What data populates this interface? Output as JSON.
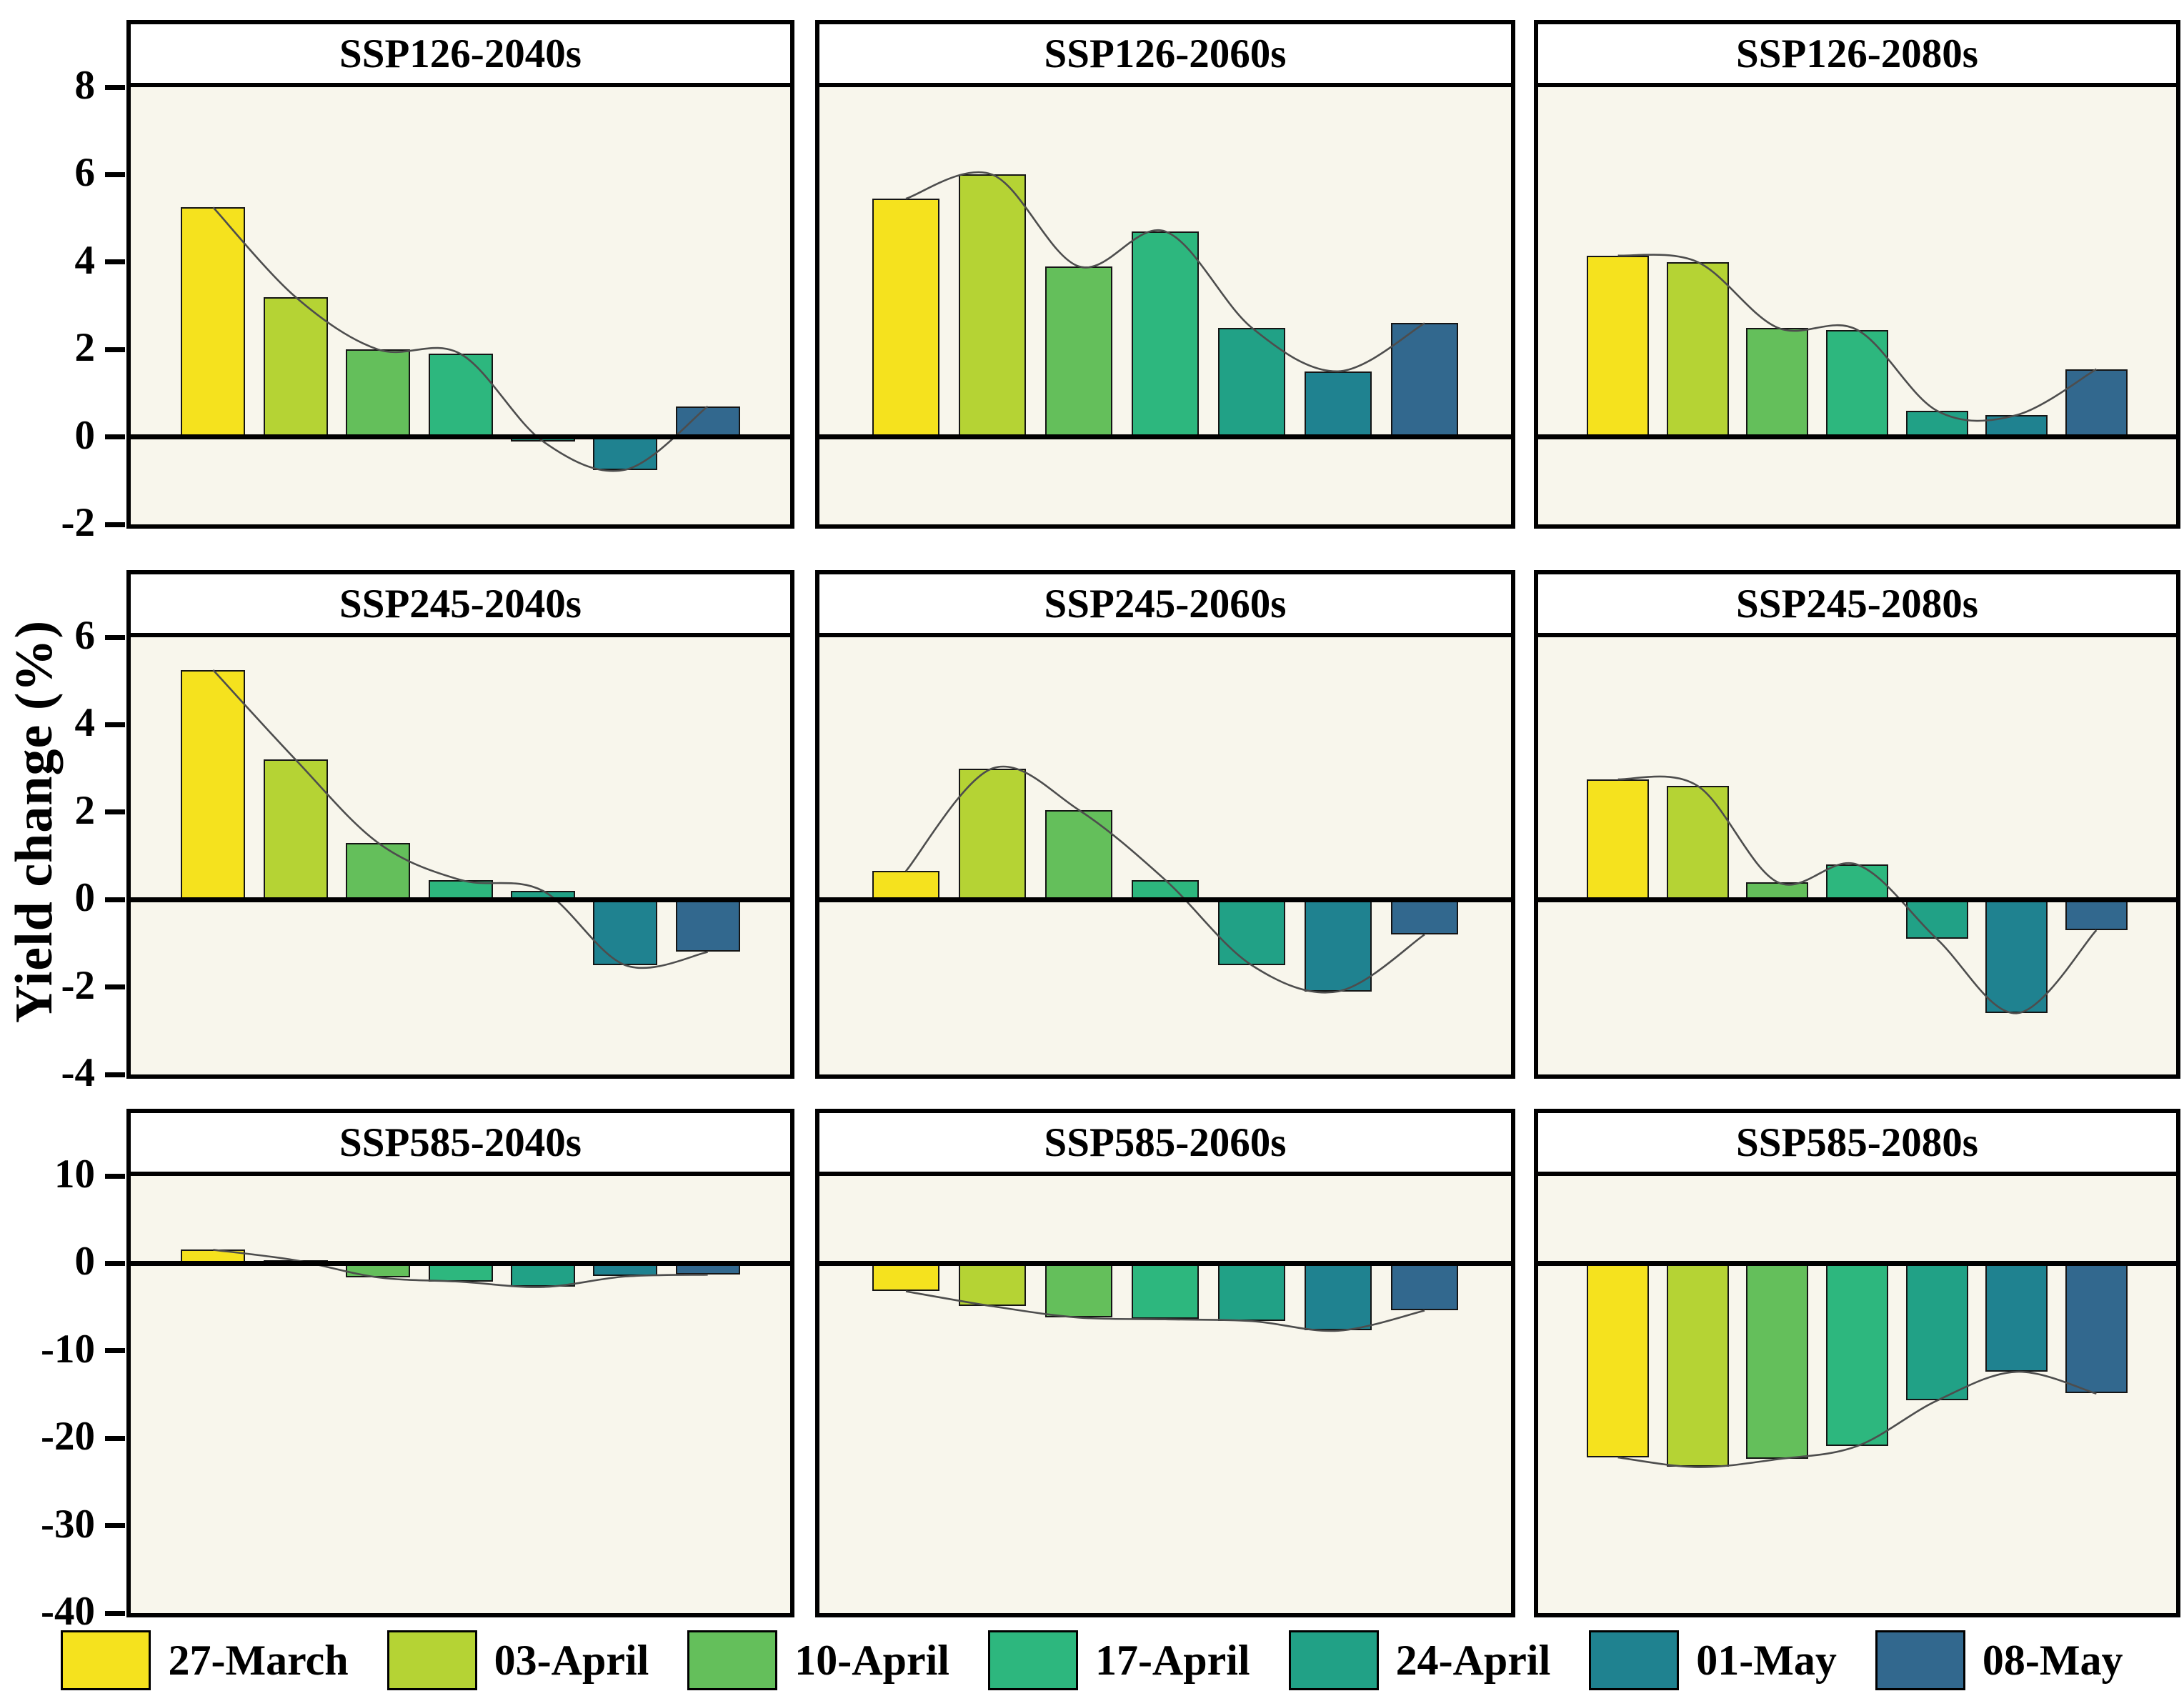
{
  "figure": {
    "ylabel": "Yield change (%)"
  },
  "legend": {
    "items": [
      {
        "label": "27-March",
        "color": "#F5E21E"
      },
      {
        "label": "03-April",
        "color": "#B5D334"
      },
      {
        "label": "10-April",
        "color": "#64BF5B"
      },
      {
        "label": "17-April",
        "color": "#2DB77E"
      },
      {
        "label": "24-April",
        "color": "#21A186"
      },
      {
        "label": "01-May",
        "color": "#1F8290"
      },
      {
        "label": "08-May",
        "color": "#32688E"
      }
    ]
  },
  "style": {
    "plot_background": "#F8F6EC",
    "frame_color": "#000000",
    "curve_color": "#4D4D4D",
    "bar_edge_color": "#151515"
  },
  "chart_data": [
    {
      "type": "bar",
      "title": "SSP126-2040s",
      "categories": [
        "27-March",
        "03-April",
        "10-April",
        "17-April",
        "24-April",
        "01-May",
        "08-May"
      ],
      "values": [
        5.25,
        3.2,
        2.0,
        1.9,
        -0.1,
        -0.75,
        0.7
      ],
      "ylim": [
        -2,
        8
      ],
      "yticks": [
        8,
        6,
        4,
        2,
        0,
        -2
      ],
      "ytick_labels_visible": true,
      "grid": false,
      "overlay": "smooth-spline-through-bar-tops"
    },
    {
      "type": "bar",
      "title": "SSP126-2060s",
      "categories": [
        "27-March",
        "03-April",
        "10-April",
        "17-April",
        "24-April",
        "01-May",
        "08-May"
      ],
      "values": [
        5.45,
        6.0,
        3.9,
        4.7,
        2.5,
        1.5,
        2.6
      ],
      "ylim": [
        -2,
        8
      ],
      "yticks": [
        8,
        6,
        4,
        2,
        0,
        -2
      ],
      "ytick_labels_visible": false,
      "grid": false,
      "overlay": "smooth-spline-through-bar-tops"
    },
    {
      "type": "bar",
      "title": "SSP126-2080s",
      "categories": [
        "27-March",
        "03-April",
        "10-April",
        "17-April",
        "24-April",
        "01-May",
        "08-May"
      ],
      "values": [
        4.15,
        4.0,
        2.5,
        2.45,
        0.6,
        0.5,
        1.55
      ],
      "ylim": [
        -2,
        8
      ],
      "yticks": [
        8,
        6,
        4,
        2,
        0,
        -2
      ],
      "ytick_labels_visible": false,
      "grid": false,
      "overlay": "smooth-spline-through-bar-tops"
    },
    {
      "type": "bar",
      "title": "SSP245-2040s",
      "categories": [
        "27-March",
        "03-April",
        "10-April",
        "17-April",
        "24-April",
        "01-May",
        "08-May"
      ],
      "values": [
        5.25,
        3.2,
        1.3,
        0.45,
        0.2,
        -1.5,
        -1.2
      ],
      "ylim": [
        -4,
        6
      ],
      "yticks": [
        6,
        4,
        2,
        0,
        -2,
        -4
      ],
      "ytick_labels_visible": true,
      "grid": false,
      "overlay": "smooth-spline-through-bar-tops"
    },
    {
      "type": "bar",
      "title": "SSP245-2060s",
      "categories": [
        "27-March",
        "03-April",
        "10-April",
        "17-April",
        "24-April",
        "01-May",
        "08-May"
      ],
      "values": [
        0.65,
        3.0,
        2.05,
        0.45,
        -1.5,
        -2.1,
        -0.8
      ],
      "ylim": [
        -4,
        6
      ],
      "yticks": [
        6,
        4,
        2,
        0,
        -2,
        -4
      ],
      "ytick_labels_visible": false,
      "grid": false,
      "overlay": "smooth-spline-through-bar-tops"
    },
    {
      "type": "bar",
      "title": "SSP245-2080s",
      "categories": [
        "27-March",
        "03-April",
        "10-April",
        "17-April",
        "24-April",
        "01-May",
        "08-May"
      ],
      "values": [
        2.75,
        2.6,
        0.4,
        0.8,
        -0.9,
        -2.6,
        -0.7
      ],
      "ylim": [
        -4,
        6
      ],
      "yticks": [
        6,
        4,
        2,
        0,
        -2,
        -4
      ],
      "ytick_labels_visible": false,
      "grid": false,
      "overlay": "smooth-spline-through-bar-tops"
    },
    {
      "type": "bar",
      "title": "SSP585-2040s",
      "categories": [
        "27-March",
        "03-April",
        "10-April",
        "17-April",
        "24-April",
        "01-May",
        "08-May"
      ],
      "values": [
        1.55,
        0.35,
        -1.6,
        -2.1,
        -2.7,
        -1.5,
        -1.3
      ],
      "ylim": [
        -40,
        10
      ],
      "yticks": [
        10,
        0,
        -10,
        -20,
        -30,
        -40
      ],
      "ytick_labels_visible": true,
      "grid": false,
      "overlay": "smooth-spline-through-bar-tops"
    },
    {
      "type": "bar",
      "title": "SSP585-2060s",
      "categories": [
        "27-March",
        "03-April",
        "10-April",
        "17-April",
        "24-April",
        "01-May",
        "08-May"
      ],
      "values": [
        -3.2,
        -4.9,
        -6.2,
        -6.4,
        -6.6,
        -7.7,
        -5.4
      ],
      "ylim": [
        -40,
        10
      ],
      "yticks": [
        10,
        0,
        -10,
        -20,
        -30,
        -40
      ],
      "ytick_labels_visible": false,
      "grid": false,
      "overlay": "smooth-spline-through-bar-tops"
    },
    {
      "type": "bar",
      "title": "SSP585-2080s",
      "categories": [
        "27-March",
        "03-April",
        "10-April",
        "17-April",
        "24-April",
        "01-May",
        "08-May"
      ],
      "values": [
        -22.2,
        -23.3,
        -22.4,
        -20.9,
        -15.7,
        -12.4,
        -14.9
      ],
      "ylim": [
        -40,
        10
      ],
      "yticks": [
        10,
        0,
        -10,
        -20,
        -30,
        -40
      ],
      "ytick_labels_visible": false,
      "grid": false,
      "overlay": "smooth-spline-through-bar-tops"
    }
  ]
}
